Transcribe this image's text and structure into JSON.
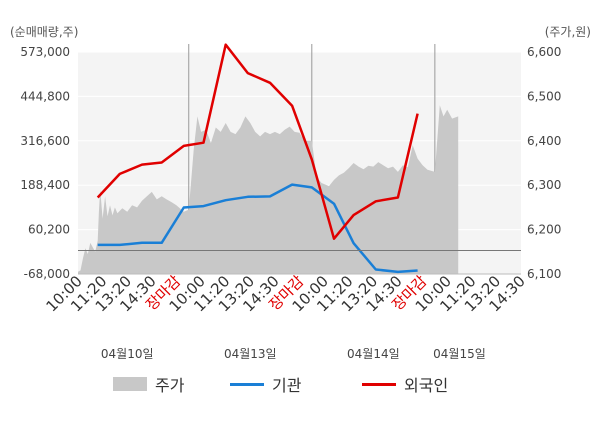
{
  "chart_data": {
    "type": "line",
    "left_axis": {
      "unit_label": "(순매매량,주)",
      "ticks": [
        "573,000",
        "444,800",
        "316,600",
        "188,400",
        "60,200",
        "-68,000"
      ],
      "tick_values": [
        573000,
        444800,
        316600,
        188400,
        60200,
        -68000
      ],
      "range": [
        -68000,
        573000
      ]
    },
    "right_axis": {
      "unit_label": "(주가,원)",
      "ticks": [
        "6,600",
        "6,500",
        "6,400",
        "6,300",
        "6,200",
        "6,100"
      ],
      "tick_values": [
        6600,
        6500,
        6400,
        6300,
        6200,
        6100
      ],
      "range": [
        6100,
        6600
      ]
    },
    "x_ticks": [
      {
        "label": "10:00",
        "color": "#333333"
      },
      {
        "label": "11:20",
        "color": "#333333"
      },
      {
        "label": "13:20",
        "color": "#333333"
      },
      {
        "label": "14:30",
        "color": "#333333"
      },
      {
        "label": "장마감",
        "color": "#e00000"
      },
      {
        "label": "10:00",
        "color": "#333333"
      },
      {
        "label": "11:20",
        "color": "#333333"
      },
      {
        "label": "13:20",
        "color": "#333333"
      },
      {
        "label": "14:30",
        "color": "#333333"
      },
      {
        "label": "장마감",
        "color": "#e00000"
      },
      {
        "label": "10:00",
        "color": "#333333"
      },
      {
        "label": "11:20",
        "color": "#333333"
      },
      {
        "label": "13:20",
        "color": "#333333"
      },
      {
        "label": "14:30",
        "color": "#333333"
      },
      {
        "label": "장마감",
        "color": "#e00000"
      },
      {
        "label": "10:00",
        "color": "#333333"
      },
      {
        "label": "11:20",
        "color": "#333333"
      },
      {
        "label": "13:20",
        "color": "#333333"
      },
      {
        "label": "14:30",
        "color": "#333333"
      }
    ],
    "date_labels": [
      {
        "label": "04월10일",
        "tick_index": 2
      },
      {
        "label": "04월13일",
        "tick_index": 7
      },
      {
        "label": "04월14일",
        "tick_index": 12
      },
      {
        "label": "04월15일",
        "tick_index": 15.5
      }
    ],
    "day_separators": [
      4.5,
      9.5,
      14.5
    ],
    "series": [
      {
        "name": "주가",
        "kind": "area",
        "axis": "right",
        "color": "#c8c8c8",
        "points": [
          [
            0,
            6105
          ],
          [
            0.1,
            6108
          ],
          [
            0.2,
            6135
          ],
          [
            0.3,
            6158
          ],
          [
            0.4,
            6145
          ],
          [
            0.5,
            6170
          ],
          [
            0.6,
            6160
          ],
          [
            0.7,
            6150
          ],
          [
            0.8,
            6175
          ],
          [
            0.85,
            6240
          ],
          [
            0.9,
            6290
          ],
          [
            1.0,
            6225
          ],
          [
            1.1,
            6275
          ],
          [
            1.2,
            6230
          ],
          [
            1.3,
            6255
          ],
          [
            1.4,
            6232
          ],
          [
            1.5,
            6250
          ],
          [
            1.6,
            6237
          ],
          [
            1.8,
            6248
          ],
          [
            2.0,
            6240
          ],
          [
            2.2,
            6255
          ],
          [
            2.4,
            6250
          ],
          [
            2.6,
            6265
          ],
          [
            2.8,
            6275
          ],
          [
            3.0,
            6285
          ],
          [
            3.2,
            6268
          ],
          [
            3.4,
            6275
          ],
          [
            3.6,
            6268
          ],
          [
            3.8,
            6262
          ],
          [
            4.0,
            6255
          ],
          [
            4.3,
            6240
          ],
          [
            4.5,
            6245
          ],
          [
            4.7,
            6380
          ],
          [
            4.85,
            6455
          ],
          [
            5.0,
            6420
          ],
          [
            5.2,
            6425
          ],
          [
            5.4,
            6395
          ],
          [
            5.6,
            6430
          ],
          [
            5.8,
            6420
          ],
          [
            6.0,
            6440
          ],
          [
            6.2,
            6420
          ],
          [
            6.4,
            6415
          ],
          [
            6.6,
            6430
          ],
          [
            6.8,
            6455
          ],
          [
            7.0,
            6440
          ],
          [
            7.2,
            6420
          ],
          [
            7.4,
            6410
          ],
          [
            7.6,
            6420
          ],
          [
            7.8,
            6415
          ],
          [
            8.0,
            6420
          ],
          [
            8.2,
            6415
          ],
          [
            8.4,
            6425
          ],
          [
            8.6,
            6432
          ],
          [
            8.8,
            6420
          ],
          [
            9.0,
            6418
          ],
          [
            9.2,
            6400
          ],
          [
            9.5,
            6400
          ],
          [
            9.7,
            6318
          ],
          [
            9.9,
            6305
          ],
          [
            10.2,
            6298
          ],
          [
            10.4,
            6312
          ],
          [
            10.6,
            6322
          ],
          [
            10.8,
            6328
          ],
          [
            11.0,
            6338
          ],
          [
            11.2,
            6350
          ],
          [
            11.4,
            6342
          ],
          [
            11.6,
            6336
          ],
          [
            11.8,
            6344
          ],
          [
            12.0,
            6342
          ],
          [
            12.2,
            6352
          ],
          [
            12.4,
            6345
          ],
          [
            12.6,
            6338
          ],
          [
            12.8,
            6342
          ],
          [
            13.0,
            6330
          ],
          [
            13.2,
            6345
          ],
          [
            13.4,
            6340
          ],
          [
            13.6,
            6390
          ],
          [
            13.8,
            6360
          ],
          [
            14.0,
            6345
          ],
          [
            14.2,
            6335
          ],
          [
            14.5,
            6330
          ],
          [
            14.7,
            6480
          ],
          [
            14.85,
            6455
          ],
          [
            15.0,
            6470
          ],
          [
            15.2,
            6450
          ],
          [
            15.45,
            6455
          ]
        ]
      },
      {
        "name": "기관",
        "kind": "line",
        "axis": "left",
        "color": "#1a7fd6",
        "points": [
          [
            0.8,
            16000
          ],
          [
            1.7,
            16000
          ],
          [
            2.6,
            22000
          ],
          [
            3.4,
            22000
          ],
          [
            4.3,
            124000
          ],
          [
            5.1,
            128000
          ],
          [
            6.0,
            145000
          ],
          [
            6.9,
            155000
          ],
          [
            7.8,
            156000
          ],
          [
            8.7,
            190000
          ],
          [
            9.5,
            182000
          ],
          [
            10.4,
            135000
          ],
          [
            11.2,
            21000
          ],
          [
            12.1,
            -55000
          ],
          [
            13.0,
            -62000
          ],
          [
            13.8,
            -58000
          ]
        ]
      },
      {
        "name": "외국인",
        "kind": "line",
        "axis": "left",
        "color": "#e00000",
        "points": [
          [
            0.8,
            153000
          ],
          [
            1.7,
            221000
          ],
          [
            2.6,
            248000
          ],
          [
            3.4,
            254000
          ],
          [
            4.3,
            302000
          ],
          [
            5.1,
            311000
          ],
          [
            6.0,
            594000
          ],
          [
            6.9,
            512000
          ],
          [
            7.8,
            484000
          ],
          [
            8.7,
            418000
          ],
          [
            9.5,
            263000
          ],
          [
            10.4,
            34000
          ],
          [
            11.2,
            102000
          ],
          [
            12.1,
            142000
          ],
          [
            13.0,
            153000
          ],
          [
            13.8,
            395000
          ]
        ]
      }
    ],
    "legend": [
      {
        "label": "주가",
        "kind": "area",
        "color": "#c8c8c8"
      },
      {
        "label": "기관",
        "kind": "line",
        "color": "#1a7fd6"
      },
      {
        "label": "외국인",
        "kind": "line",
        "color": "#e00000"
      }
    ]
  }
}
